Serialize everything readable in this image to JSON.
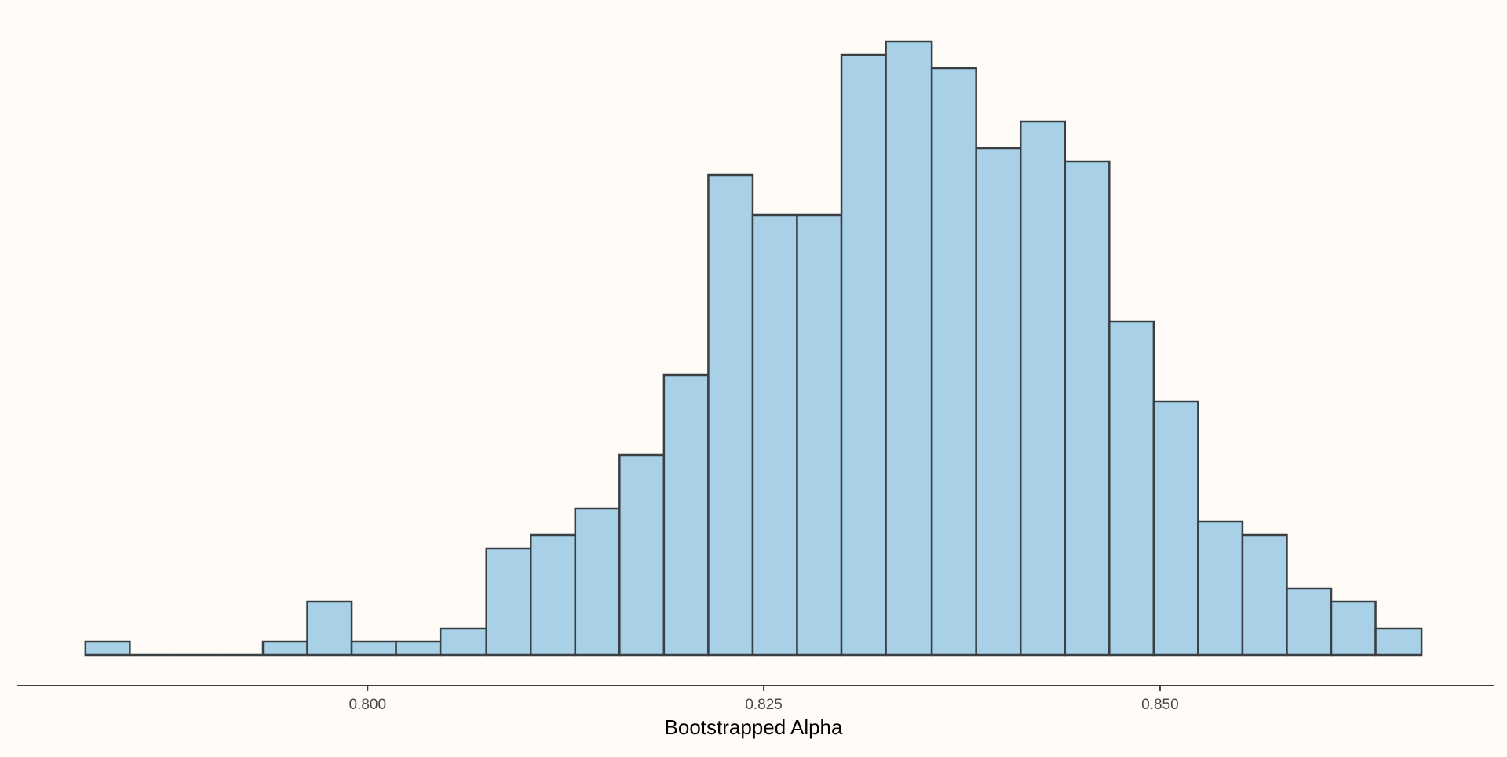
{
  "chart_data": {
    "type": "bar",
    "title": "",
    "xlabel": "Bootstrapped Alpha",
    "ylabel": "",
    "xlim": [
      0.7779,
      0.8711
    ],
    "ylim": [
      0,
      46
    ],
    "bin_width": 0.0028,
    "bins": [
      {
        "x0": 0.7822,
        "x1": 0.785,
        "count": 1
      },
      {
        "x0": 0.785,
        "x1": 0.7878,
        "count": 0
      },
      {
        "x0": 0.7878,
        "x1": 0.7906,
        "count": 0
      },
      {
        "x0": 0.7906,
        "x1": 0.7934,
        "count": 0
      },
      {
        "x0": 0.7934,
        "x1": 0.7962,
        "count": 1
      },
      {
        "x0": 0.7962,
        "x1": 0.799,
        "count": 4
      },
      {
        "x0": 0.799,
        "x1": 0.8018,
        "count": 1
      },
      {
        "x0": 0.8018,
        "x1": 0.8046,
        "count": 1
      },
      {
        "x0": 0.8046,
        "x1": 0.8075,
        "count": 2
      },
      {
        "x0": 0.8075,
        "x1": 0.8103,
        "count": 8
      },
      {
        "x0": 0.8103,
        "x1": 0.8131,
        "count": 9
      },
      {
        "x0": 0.8131,
        "x1": 0.8159,
        "count": 11
      },
      {
        "x0": 0.8159,
        "x1": 0.8187,
        "count": 15
      },
      {
        "x0": 0.8187,
        "x1": 0.8215,
        "count": 21
      },
      {
        "x0": 0.8215,
        "x1": 0.8243,
        "count": 36
      },
      {
        "x0": 0.8243,
        "x1": 0.8271,
        "count": 33
      },
      {
        "x0": 0.8271,
        "x1": 0.8299,
        "count": 33
      },
      {
        "x0": 0.8299,
        "x1": 0.8327,
        "count": 45
      },
      {
        "x0": 0.8327,
        "x1": 0.8356,
        "count": 46
      },
      {
        "x0": 0.8356,
        "x1": 0.8384,
        "count": 44
      },
      {
        "x0": 0.8384,
        "x1": 0.8412,
        "count": 38
      },
      {
        "x0": 0.8412,
        "x1": 0.844,
        "count": 40
      },
      {
        "x0": 0.844,
        "x1": 0.8468,
        "count": 37
      },
      {
        "x0": 0.8468,
        "x1": 0.8496,
        "count": 25
      },
      {
        "x0": 0.8496,
        "x1": 0.8524,
        "count": 19
      },
      {
        "x0": 0.8524,
        "x1": 0.8552,
        "count": 10
      },
      {
        "x0": 0.8552,
        "x1": 0.858,
        "count": 9
      },
      {
        "x0": 0.858,
        "x1": 0.8608,
        "count": 5
      },
      {
        "x0": 0.8608,
        "x1": 0.8636,
        "count": 4
      },
      {
        "x0": 0.8636,
        "x1": 0.8665,
        "count": 2
      }
    ],
    "x_ticks": [
      {
        "value": 0.8,
        "label": "0.800"
      },
      {
        "value": 0.825,
        "label": "0.825"
      },
      {
        "value": 0.85,
        "label": "0.850"
      }
    ],
    "grid": false,
    "legend": "none",
    "colors": {
      "background": "#fffcf7",
      "bar_fill": "#a8d0e6",
      "bar_stroke": "#3a3f44",
      "axis": "#3a3f44",
      "tick_label": "#4a4a4a",
      "axis_title": "#000000"
    }
  }
}
